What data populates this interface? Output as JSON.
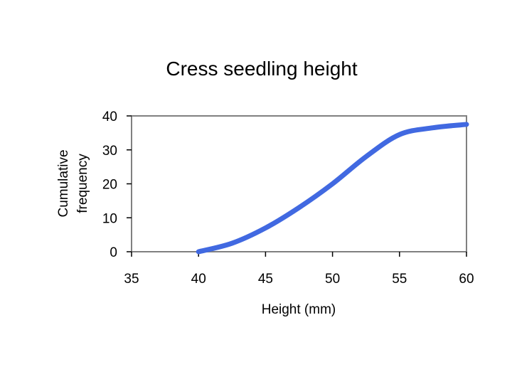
{
  "chart_data": {
    "type": "line",
    "title": "Cress seedling height",
    "xlabel": "Height (mm)",
    "ylabel": [
      "Cumulative",
      "frequency"
    ],
    "xlim": [
      35,
      60
    ],
    "ylim": [
      0,
      40
    ],
    "xticks": [
      35,
      40,
      45,
      50,
      55,
      60
    ],
    "yticks": [
      0,
      10,
      20,
      30,
      40
    ],
    "grid": false,
    "series": [
      {
        "color": "#4169e1",
        "x": [
          40,
          42.5,
          45,
          47.5,
          50,
          52.5,
          55,
          57.5,
          60
        ],
        "y": [
          0,
          2.5,
          7,
          13,
          20,
          28,
          34.5,
          36.5,
          37.5
        ]
      }
    ]
  }
}
